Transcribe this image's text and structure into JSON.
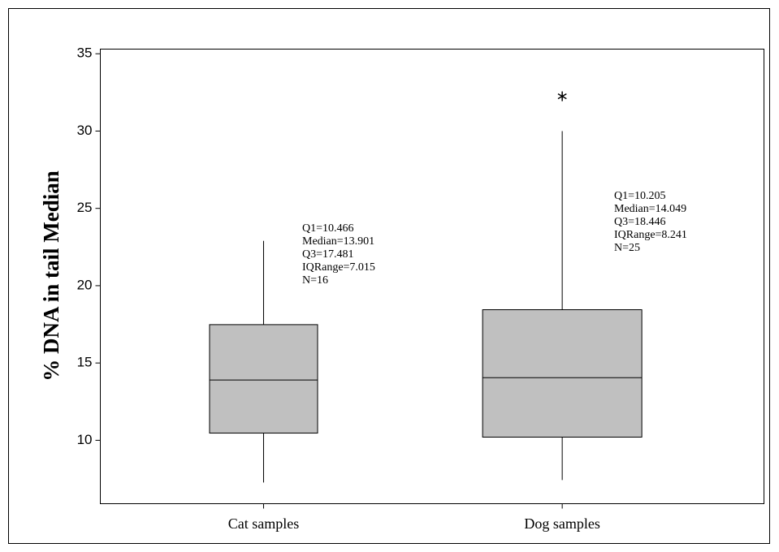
{
  "chart_data": {
    "type": "box",
    "ylabel": "% DNA in tail Median",
    "categories": [
      "Cat samples",
      "Dog samples"
    ],
    "boxes": [
      {
        "whisker_low": 7.27,
        "q1": 10.466,
        "median": 13.901,
        "q3": 17.481,
        "whisker_high": 22.9,
        "outliers": []
      },
      {
        "whisker_low": 7.43,
        "q1": 10.205,
        "median": 14.049,
        "q3": 18.446,
        "whisker_high": 30.0,
        "outliers": [
          32.25
        ]
      }
    ],
    "annotations": [
      [
        "Q1=10.466",
        "Median=13.901",
        "Q3=17.481",
        "IQRange=7.015",
        "N=16"
      ],
      [
        "Q1=10.205",
        "Median=14.049",
        "Q3=18.446",
        "IQRange=8.241",
        "N=25"
      ]
    ],
    "box_color": "#c0c0c0",
    "ylim": [
      5.9,
      35.3
    ],
    "yticks": [
      10,
      15,
      20,
      25,
      30,
      35
    ]
  }
}
